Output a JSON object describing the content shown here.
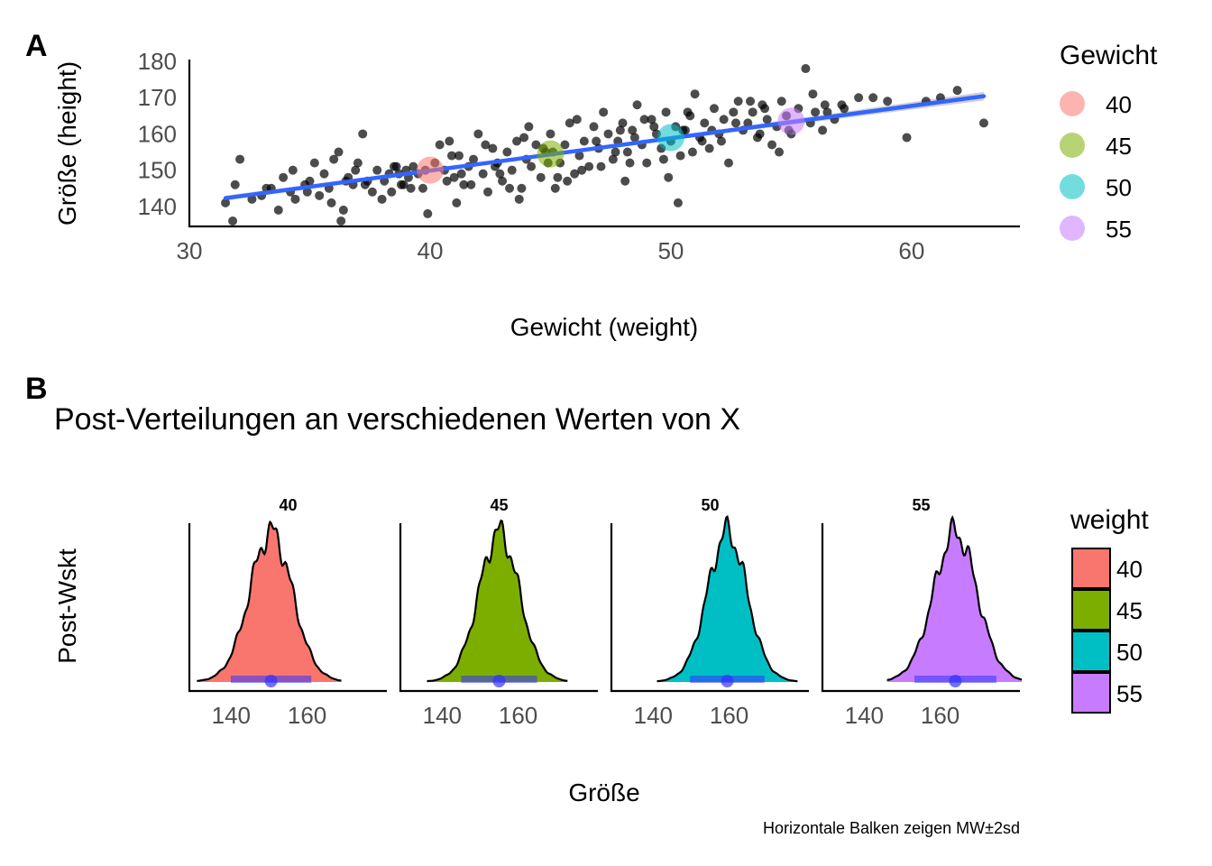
{
  "figure": {
    "caption": "Horizontale Balken zeigen MW±2sd"
  },
  "chart_data": [
    {
      "type": "scatter",
      "panel_tag": "A",
      "title": "",
      "xlabel": "Gewicht (weight)",
      "ylabel": "Größe (height)",
      "xlim": [
        30,
        64.5
      ],
      "ylim": [
        134.5,
        180.5
      ],
      "x_ticks": [
        "30",
        "40",
        "50",
        "60"
      ],
      "y_ticks": [
        "140",
        "150",
        "160",
        "170",
        "180"
      ],
      "grid": false,
      "point_color": "#000000",
      "regression_line": {
        "x": [
          31.5,
          63
        ],
        "y": [
          142.3,
          170.4
        ],
        "color": "#3366FF",
        "ribbon_color": "#999999"
      },
      "highlighted_points": [
        {
          "x": 40,
          "y": 150.0,
          "label": "40",
          "color": "#F8766D"
        },
        {
          "x": 45,
          "y": 154.5,
          "label": "45",
          "color": "#7CAE00"
        },
        {
          "x": 50,
          "y": 159.0,
          "label": "50",
          "color": "#00BFC4"
        },
        {
          "x": 55,
          "y": 163.5,
          "label": "55",
          "color": "#C77CFF"
        }
      ],
      "legend": {
        "title": "Gewicht",
        "position": "right",
        "entries": [
          "40",
          "45",
          "50",
          "55"
        ]
      },
      "points": [
        [
          31.5,
          141
        ],
        [
          31.8,
          136
        ],
        [
          31.9,
          146
        ],
        [
          32.1,
          153
        ],
        [
          32.6,
          142
        ],
        [
          33.0,
          143
        ],
        [
          33.2,
          145
        ],
        [
          33.7,
          139
        ],
        [
          33.9,
          148
        ],
        [
          34.2,
          144
        ],
        [
          34.4,
          142
        ],
        [
          34.8,
          146
        ],
        [
          35.0,
          147
        ],
        [
          35.2,
          152
        ],
        [
          35.4,
          143
        ],
        [
          35.6,
          149
        ],
        [
          35.8,
          145
        ],
        [
          36.0,
          153
        ],
        [
          36.2,
          155
        ],
        [
          36.3,
          136
        ],
        [
          36.4,
          139
        ],
        [
          36.6,
          148
        ],
        [
          36.8,
          146
        ],
        [
          37.0,
          152
        ],
        [
          37.2,
          160
        ],
        [
          37.4,
          147
        ],
        [
          37.6,
          144
        ],
        [
          37.8,
          150
        ],
        [
          38.0,
          142
        ],
        [
          38.1,
          147
        ],
        [
          38.3,
          149
        ],
        [
          38.5,
          151
        ],
        [
          38.7,
          149
        ],
        [
          38.9,
          146
        ],
        [
          39.1,
          148
        ],
        [
          39.3,
          151
        ],
        [
          39.5,
          149
        ],
        [
          39.7,
          145
        ],
        [
          39.9,
          138
        ],
        [
          40.2,
          152
        ],
        [
          40.4,
          157
        ],
        [
          40.6,
          150
        ],
        [
          40.8,
          158
        ],
        [
          41.0,
          148
        ],
        [
          41.2,
          154
        ],
        [
          41.4,
          146
        ],
        [
          41.6,
          151
        ],
        [
          41.8,
          153
        ],
        [
          42.0,
          160
        ],
        [
          42.2,
          149
        ],
        [
          42.4,
          144
        ],
        [
          42.6,
          156
        ],
        [
          42.8,
          152
        ],
        [
          43.0,
          147
        ],
        [
          43.2,
          155
        ],
        [
          43.4,
          150
        ],
        [
          43.6,
          158
        ],
        [
          43.8,
          145
        ],
        [
          44.0,
          153
        ],
        [
          44.2,
          151
        ],
        [
          44.4,
          157
        ],
        [
          44.6,
          148
        ],
        [
          44.8,
          155
        ],
        [
          45.0,
          160
        ],
        [
          45.2,
          145
        ],
        [
          45.4,
          152
        ],
        [
          45.6,
          157
        ],
        [
          45.8,
          163
        ],
        [
          46.0,
          149
        ],
        [
          46.2,
          154
        ],
        [
          46.4,
          158
        ],
        [
          46.6,
          151
        ],
        [
          46.8,
          162
        ],
        [
          47.0,
          156
        ],
        [
          47.2,
          166
        ],
        [
          47.4,
          160
        ],
        [
          47.6,
          153
        ],
        [
          47.8,
          158
        ],
        [
          48.0,
          163
        ],
        [
          48.2,
          155
        ],
        [
          48.4,
          161
        ],
        [
          48.6,
          168
        ],
        [
          48.8,
          157
        ],
        [
          49.0,
          152
        ],
        [
          49.2,
          164
        ],
        [
          49.4,
          160
        ],
        [
          49.6,
          156
        ],
        [
          49.8,
          166
        ],
        [
          50.0,
          158
        ],
        [
          50.2,
          162
        ],
        [
          50.4,
          154
        ],
        [
          50.6,
          161
        ],
        [
          50.8,
          165
        ],
        [
          51.0,
          171
        ],
        [
          51.2,
          159
        ],
        [
          51.4,
          163
        ],
        [
          51.6,
          156
        ],
        [
          51.8,
          167
        ],
        [
          52.0,
          160
        ],
        [
          52.2,
          164
        ],
        [
          52.4,
          152
        ],
        [
          52.6,
          166
        ],
        [
          52.8,
          169
        ],
        [
          53.0,
          161
        ],
        [
          53.2,
          163
        ],
        [
          53.4,
          166
        ],
        [
          53.6,
          159
        ],
        [
          53.8,
          168
        ],
        [
          54.0,
          164
        ],
        [
          54.2,
          157
        ],
        [
          54.4,
          162
        ],
        [
          54.6,
          169
        ],
        [
          54.8,
          165
        ],
        [
          55.0,
          160
        ],
        [
          55.3,
          167
        ],
        [
          55.6,
          178
        ],
        [
          55.8,
          163
        ],
        [
          56.0,
          166
        ],
        [
          56.4,
          168
        ],
        [
          56.8,
          164
        ],
        [
          57.2,
          167
        ],
        [
          57.8,
          170
        ],
        [
          58.4,
          170
        ],
        [
          59.0,
          169
        ],
        [
          59.8,
          159
        ],
        [
          60.6,
          169
        ],
        [
          61.2,
          170
        ],
        [
          61.9,
          172
        ],
        [
          63.0,
          163
        ],
        [
          34.3,
          150
        ],
        [
          36.9,
          150
        ],
        [
          38.6,
          151
        ],
        [
          39.2,
          145
        ],
        [
          41.1,
          141
        ],
        [
          42.9,
          149
        ],
        [
          43.7,
          142
        ],
        [
          44.1,
          162
        ],
        [
          45.7,
          147
        ],
        [
          46.3,
          150
        ],
        [
          47.1,
          151
        ],
        [
          48.1,
          147
        ],
        [
          48.9,
          164
        ],
        [
          49.7,
          153
        ],
        [
          50.3,
          141
        ],
        [
          50.9,
          155
        ],
        [
          52.1,
          158
        ],
        [
          53.7,
          160
        ],
        [
          54.9,
          161
        ],
        [
          56.3,
          161
        ],
        [
          38.4,
          144
        ],
        [
          40.7,
          147
        ],
        [
          42.3,
          157
        ],
        [
          44.9,
          152
        ],
        [
          46.9,
          158
        ],
        [
          48.5,
          159
        ],
        [
          51.7,
          161
        ],
        [
          53.3,
          169
        ],
        [
          45.3,
          148
        ],
        [
          47.7,
          155
        ],
        [
          49.3,
          162
        ],
        [
          43.3,
          145
        ],
        [
          41.7,
          146
        ],
        [
          39.8,
          150
        ],
        [
          37.3,
          146
        ],
        [
          35.9,
          141
        ],
        [
          57.1,
          168
        ],
        [
          55.9,
          171
        ],
        [
          52.7,
          163
        ],
        [
          50.7,
          166
        ],
        [
          48.3,
          152
        ],
        [
          46.1,
          164
        ],
        [
          44.7,
          156
        ],
        [
          42.7,
          151
        ],
        [
          40.9,
          154
        ],
        [
          39.0,
          150
        ],
        [
          36.5,
          147
        ],
        [
          34.9,
          144
        ],
        [
          33.4,
          145
        ],
        [
          47.9,
          161
        ],
        [
          49.9,
          148
        ],
        [
          51.3,
          158
        ],
        [
          53.9,
          167
        ],
        [
          54.5,
          155
        ],
        [
          56.5,
          166
        ],
        [
          45.1,
          155
        ],
        [
          43.9,
          159
        ],
        [
          41.3,
          149
        ],
        [
          38.8,
          146
        ],
        [
          50.5,
          161
        ]
      ]
    },
    {
      "type": "area",
      "panel_tag": "B",
      "title": "Post-Verteilungen an verschiedenen Werten von X",
      "xlabel": "Größe",
      "ylabel": "Post-Wskt",
      "xlim": [
        129,
        181
      ],
      "x_ticks": [
        "140",
        "160"
      ],
      "legend": {
        "title": "weight",
        "position": "right",
        "entries": [
          "40",
          "45",
          "50",
          "55"
        ]
      },
      "bar_color": "#3333FF",
      "series": [
        {
          "name": "40",
          "color": "#F8766D",
          "mean": 150.5,
          "sd": 5.3,
          "x_range": [
            131,
            169
          ]
        },
        {
          "name": "45",
          "color": "#7CAE00",
          "mean": 155.0,
          "sd": 5.0,
          "x_range": [
            136,
            173
          ]
        },
        {
          "name": "50",
          "color": "#00BFC4",
          "mean": 159.5,
          "sd": 4.9,
          "x_range": [
            141,
            178
          ]
        },
        {
          "name": "55",
          "color": "#C77CFF",
          "mean": 164.0,
          "sd": 5.4,
          "x_range": [
            146,
            182
          ]
        }
      ]
    }
  ]
}
